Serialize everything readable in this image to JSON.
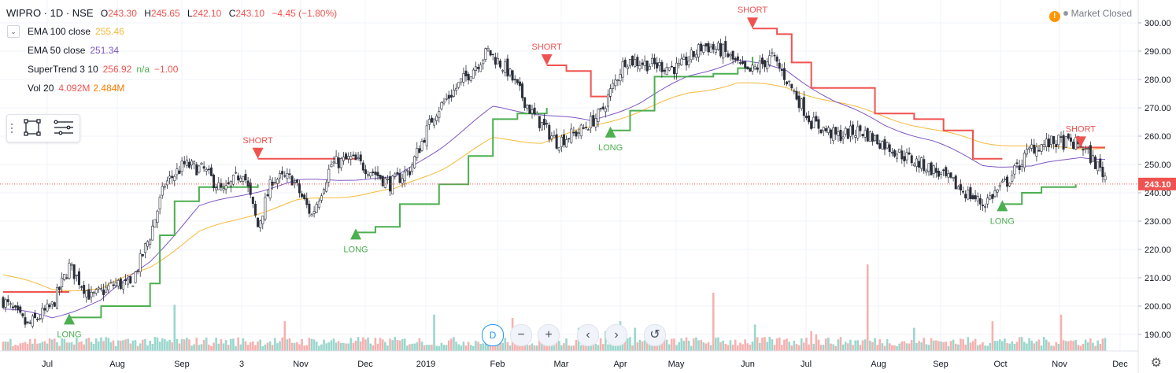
{
  "header": {
    "symbol": "WIPRO · 1D · NSE",
    "open": "243.30",
    "high": "245.65",
    "low": "242.10",
    "close": "243.10",
    "change": "−4.45 (−1.80%)",
    "o_label": "O",
    "h_label": "H",
    "l_label": "L",
    "c_label": "C"
  },
  "indicators": [
    {
      "name": "EMA 100 close",
      "values": [
        "255.46"
      ],
      "colors": [
        "#f6b93b"
      ]
    },
    {
      "name": "EMA 50 close",
      "values": [
        "251.34"
      ],
      "colors": [
        "#7e57c2"
      ]
    },
    {
      "name": "SuperTrend 3 10",
      "values": [
        "256.92",
        "n/a",
        "−1.00"
      ],
      "colors": [
        "#ef5350",
        "#4caf50",
        "#ef5350"
      ]
    },
    {
      "name": "Vol 20",
      "values": [
        "4.092M",
        "2.484M"
      ],
      "colors": [
        "#ef5350",
        "#f57c00"
      ]
    }
  ],
  "status": {
    "market": "Market Closed",
    "warning_icon": "!"
  },
  "nav": {
    "d_label": "D",
    "zoom_out": "−",
    "zoom_in": "+",
    "left": "‹",
    "right": "›",
    "reset": "↺"
  },
  "icons": [
    "collapse-icon",
    "rectangle-tool-icon",
    "lines-tool-icon",
    "settings-icon"
  ],
  "colors": {
    "up": "#26a69a",
    "down": "#ef5350",
    "ema100": "#f6b93b",
    "ema50": "#7e57c2",
    "st_up": "#4caf50",
    "st_down": "#ef5350",
    "last_price": "#ef5350"
  },
  "chart_data": {
    "type": "candlestick",
    "title": "WIPRO · 1D · NSE",
    "y_range": [
      186,
      304
    ],
    "y_ticks": [
      "300.00",
      "290.00",
      "280.00",
      "270.00",
      "260.00",
      "250.00",
      "240.00",
      "230.00",
      "220.00",
      "210.00",
      "200.00",
      "190.00"
    ],
    "last_price": "243.10",
    "x_ticks": [
      "Jul",
      "Aug",
      "Sep",
      "3",
      "Nov",
      "Dec",
      "2019",
      "Feb",
      "Mar",
      "Apr",
      "May",
      "Jun",
      "Jul",
      "Aug",
      "Sep",
      "Oct",
      "Nov",
      "Dec"
    ],
    "price_anchors": [
      [
        0,
        202
      ],
      [
        10,
        193
      ],
      [
        20,
        200
      ],
      [
        27,
        214
      ],
      [
        36,
        203
      ],
      [
        46,
        208
      ],
      [
        52,
        207
      ],
      [
        60,
        225
      ],
      [
        66,
        243
      ],
      [
        74,
        250
      ],
      [
        82,
        248
      ],
      [
        90,
        240
      ],
      [
        98,
        248
      ],
      [
        104,
        228
      ],
      [
        110,
        245
      ],
      [
        118,
        245
      ],
      [
        126,
        232
      ],
      [
        134,
        250
      ],
      [
        142,
        252
      ],
      [
        150,
        248
      ],
      [
        158,
        243
      ],
      [
        166,
        248
      ],
      [
        176,
        268
      ],
      [
        186,
        278
      ],
      [
        198,
        290
      ],
      [
        206,
        283
      ],
      [
        216,
        268
      ],
      [
        226,
        258
      ],
      [
        236,
        262
      ],
      [
        244,
        268
      ],
      [
        254,
        287
      ],
      [
        266,
        285
      ],
      [
        276,
        284
      ],
      [
        286,
        292
      ],
      [
        294,
        290
      ],
      [
        304,
        282
      ],
      [
        314,
        288
      ],
      [
        320,
        280
      ],
      [
        330,
        265
      ],
      [
        340,
        260
      ],
      [
        350,
        262
      ],
      [
        360,
        257
      ],
      [
        370,
        252
      ],
      [
        380,
        248
      ],
      [
        390,
        242
      ],
      [
        400,
        236
      ],
      [
        410,
        244
      ],
      [
        420,
        256
      ],
      [
        430,
        258
      ],
      [
        440,
        257
      ],
      [
        450,
        246
      ]
    ],
    "ema50_anchors": [
      [
        0,
        199
      ],
      [
        20,
        196
      ],
      [
        40,
        202
      ],
      [
        60,
        216
      ],
      [
        80,
        235
      ],
      [
        100,
        240
      ],
      [
        120,
        244
      ],
      [
        140,
        245
      ],
      [
        160,
        245
      ],
      [
        180,
        257
      ],
      [
        200,
        270
      ],
      [
        220,
        268
      ],
      [
        240,
        265
      ],
      [
        260,
        272
      ],
      [
        280,
        281
      ],
      [
        300,
        287
      ],
      [
        320,
        283
      ],
      [
        340,
        272
      ],
      [
        360,
        264
      ],
      [
        380,
        258
      ],
      [
        400,
        250
      ],
      [
        420,
        249
      ],
      [
        440,
        253
      ],
      [
        450,
        252
      ]
    ],
    "ema100_anchors": [
      [
        0,
        211
      ],
      [
        20,
        206
      ],
      [
        40,
        206
      ],
      [
        60,
        214
      ],
      [
        80,
        226
      ],
      [
        100,
        232
      ],
      [
        120,
        237
      ],
      [
        140,
        239
      ],
      [
        160,
        241
      ],
      [
        180,
        249
      ],
      [
        200,
        259
      ],
      [
        220,
        258
      ],
      [
        240,
        263
      ],
      [
        260,
        269
      ],
      [
        280,
        275
      ],
      [
        300,
        279
      ],
      [
        320,
        277
      ],
      [
        340,
        272
      ],
      [
        360,
        267
      ],
      [
        380,
        262
      ],
      [
        400,
        258
      ],
      [
        420,
        256
      ],
      [
        440,
        256
      ],
      [
        450,
        256
      ]
    ],
    "supertrend": [
      {
        "dir": "down",
        "from": 0,
        "to": 27,
        "level": 205
      },
      {
        "dir": "up",
        "from": 27,
        "to": 104,
        "steps": [
          [
            27,
            196
          ],
          [
            40,
            200
          ],
          [
            60,
            208
          ],
          [
            64,
            225
          ],
          [
            70,
            237
          ],
          [
            80,
            242
          ],
          [
            104,
            243
          ]
        ]
      },
      {
        "dir": "down",
        "from": 104,
        "to": 144,
        "level": 252
      },
      {
        "dir": "up",
        "from": 144,
        "to": 222,
        "steps": [
          [
            144,
            226
          ],
          [
            152,
            228
          ],
          [
            162,
            236
          ],
          [
            178,
            243
          ],
          [
            190,
            253
          ],
          [
            200,
            266
          ],
          [
            210,
            268
          ],
          [
            222,
            270
          ]
        ]
      },
      {
        "dir": "down",
        "from": 222,
        "to": 248,
        "steps": [
          [
            222,
            285
          ],
          [
            230,
            283
          ],
          [
            240,
            274
          ],
          [
            248,
            274
          ]
        ]
      },
      {
        "dir": "up",
        "from": 248,
        "to": 306,
        "steps": [
          [
            248,
            262
          ],
          [
            256,
            269
          ],
          [
            266,
            281
          ],
          [
            290,
            282
          ],
          [
            300,
            284
          ],
          [
            306,
            288
          ]
        ]
      },
      {
        "dir": "down",
        "from": 306,
        "to": 408,
        "steps": [
          [
            306,
            298
          ],
          [
            316,
            296
          ],
          [
            322,
            286
          ],
          [
            330,
            277
          ],
          [
            350,
            277
          ],
          [
            356,
            268
          ],
          [
            372,
            266
          ],
          [
            384,
            262
          ],
          [
            396,
            252
          ],
          [
            408,
            252
          ]
        ]
      },
      {
        "dir": "up",
        "from": 408,
        "to": 438,
        "steps": [
          [
            408,
            236
          ],
          [
            416,
            240
          ],
          [
            424,
            242
          ],
          [
            438,
            243
          ]
        ]
      },
      {
        "dir": "down",
        "from": 438,
        "to": 450,
        "level": 256
      }
    ],
    "signals": [
      {
        "type": "LONG",
        "bar": 27
      },
      {
        "type": "SHORT",
        "bar": 104
      },
      {
        "type": "LONG",
        "bar": 144
      },
      {
        "type": "SHORT",
        "bar": 222
      },
      {
        "type": "LONG",
        "bar": 248
      },
      {
        "type": "SHORT",
        "bar": 306
      },
      {
        "type": "LONG",
        "bar": 408
      },
      {
        "type": "SHORT",
        "bar": 440
      }
    ]
  }
}
